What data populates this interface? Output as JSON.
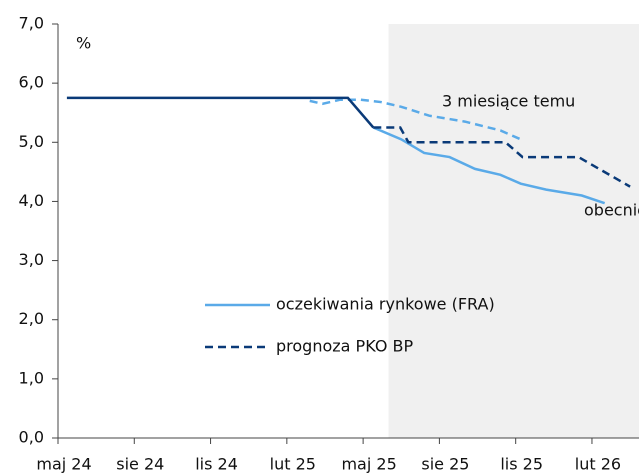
{
  "chart_data": {
    "type": "line",
    "y_unit": "%",
    "annotations": [
      "3 miesiące temu",
      "obecnie"
    ],
    "shade_from": 13,
    "xlim": [
      0,
      22.85
    ],
    "xticks": [
      {
        "value": 0,
        "label": "maj 24"
      },
      {
        "value": 3,
        "label": "sie 24"
      },
      {
        "value": 6,
        "label": "lis 24"
      },
      {
        "value": 9,
        "label": "lut 25"
      },
      {
        "value": 12,
        "label": "maj 25"
      },
      {
        "value": 15,
        "label": "sie 25"
      },
      {
        "value": 18,
        "label": "lis 25"
      },
      {
        "value": 21,
        "label": "lut 26"
      }
    ],
    "ylim": [
      0,
      7
    ],
    "yticks": [
      {
        "value": 0,
        "label": "0,0"
      },
      {
        "value": 1,
        "label": "1,0"
      },
      {
        "value": 2,
        "label": "2,0"
      },
      {
        "value": 3,
        "label": "3,0"
      },
      {
        "value": 4,
        "label": "4,0"
      },
      {
        "value": 5,
        "label": "5,0"
      },
      {
        "value": 6,
        "label": "6,0"
      },
      {
        "value": 7,
        "label": "7,0"
      }
    ],
    "series": [
      {
        "color": "#5aaae8",
        "dash": true,
        "x": [
          9.9,
          10.4,
          11.1,
          11.9,
          12.7,
          13.5,
          14.6,
          16.0,
          17.4,
          18.2
        ],
        "values": [
          5.7,
          5.65,
          5.72,
          5.72,
          5.68,
          5.6,
          5.45,
          5.35,
          5.2,
          5.05
        ]
      },
      {
        "color": "#0a3a78",
        "dash": false,
        "x": [
          0.35,
          11.4,
          12.4
        ],
        "values": [
          5.75,
          5.75,
          5.25
        ]
      },
      {
        "name": "oczekiwania rynkowe (FRA)",
        "color": "#5aaae8",
        "dash": false,
        "x": [
          12.4,
          13.5,
          14.4,
          15.4,
          16.4,
          17.4,
          18.2,
          19.2,
          20.6,
          21.5
        ],
        "values": [
          5.25,
          5.05,
          4.82,
          4.75,
          4.55,
          4.45,
          4.3,
          4.2,
          4.1,
          3.97
        ]
      },
      {
        "name": "prognoza PKO BP",
        "color": "#0a3a78",
        "dash": true,
        "x": [
          12.4,
          13.46,
          13.78,
          17.6,
          18.27,
          20.47,
          22.5
        ],
        "values": [
          5.25,
          5.25,
          5.0,
          5.0,
          4.75,
          4.75,
          4.25
        ]
      }
    ]
  }
}
